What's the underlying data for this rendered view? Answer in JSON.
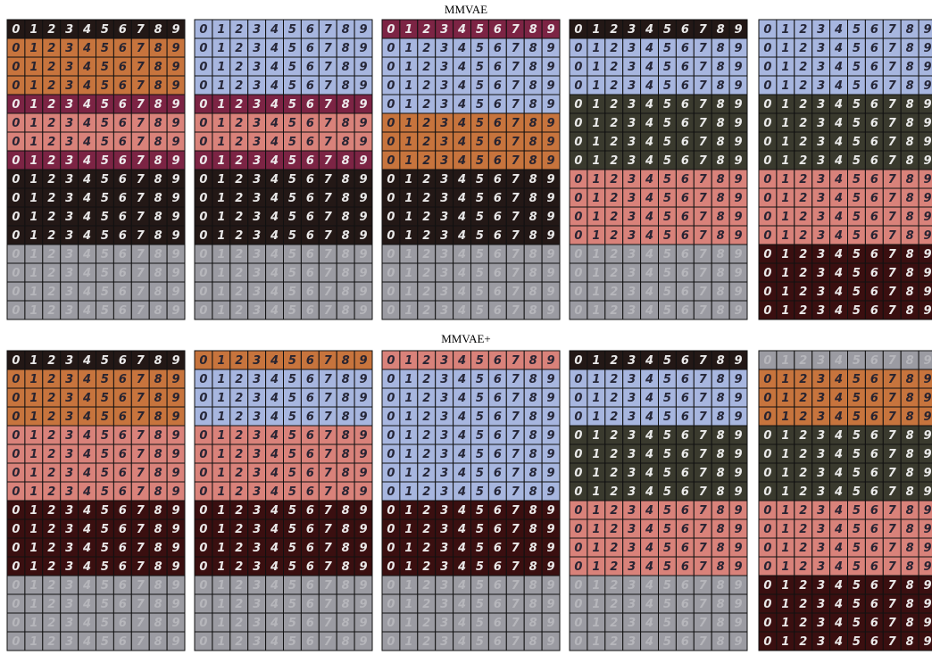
{
  "sections": [
    {
      "title": "MMVAE"
    },
    {
      "title": "MMVAE+"
    }
  ],
  "digits": [
    "0",
    "1",
    "2",
    "3",
    "4",
    "5",
    "6",
    "7",
    "8",
    "9"
  ]
}
